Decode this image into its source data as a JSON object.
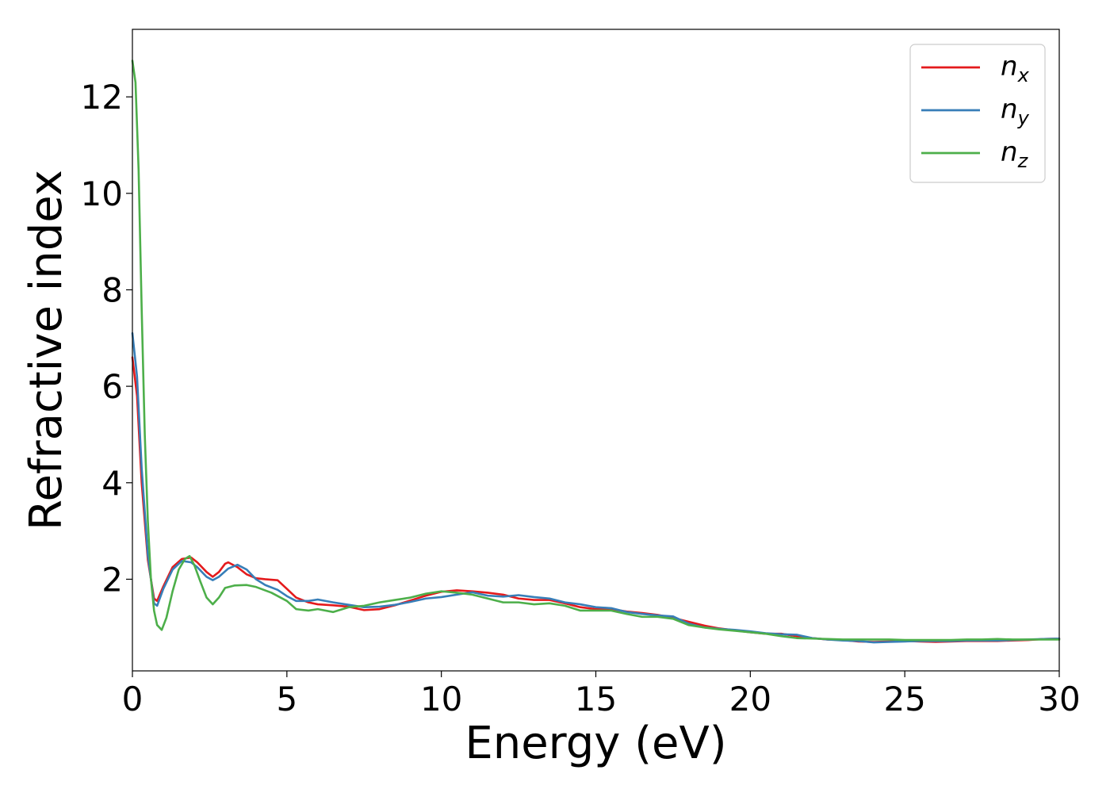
{
  "chart_data": {
    "type": "line",
    "xlabel": "Energy (eV)",
    "ylabel": "Refractive index",
    "xlim": [
      0,
      30
    ],
    "ylim": [
      0.1,
      13.4
    ],
    "xticks": [
      "0",
      "5",
      "10",
      "15",
      "20",
      "25",
      "30"
    ],
    "yticks": [
      "2",
      "4",
      "6",
      "8",
      "10",
      "12"
    ],
    "grid": false,
    "legend_position": "top-right",
    "series": [
      {
        "name": "n",
        "subscript": "x",
        "color": "#e41a1c",
        "points": [
          [
            0,
            6.6
          ],
          [
            0.15,
            5.8
          ],
          [
            0.3,
            4.0
          ],
          [
            0.5,
            2.4
          ],
          [
            0.7,
            1.6
          ],
          [
            0.8,
            1.55
          ],
          [
            1.0,
            1.85
          ],
          [
            1.3,
            2.25
          ],
          [
            1.6,
            2.42
          ],
          [
            1.9,
            2.45
          ],
          [
            2.1,
            2.35
          ],
          [
            2.4,
            2.15
          ],
          [
            2.6,
            2.05
          ],
          [
            2.8,
            2.15
          ],
          [
            3.0,
            2.32
          ],
          [
            3.1,
            2.35
          ],
          [
            3.4,
            2.25
          ],
          [
            3.7,
            2.1
          ],
          [
            4.0,
            2.02
          ],
          [
            4.3,
            2.0
          ],
          [
            4.7,
            1.98
          ],
          [
            5.0,
            1.8
          ],
          [
            5.3,
            1.62
          ],
          [
            5.7,
            1.52
          ],
          [
            6.0,
            1.48
          ],
          [
            6.5,
            1.46
          ],
          [
            7.0,
            1.43
          ],
          [
            7.5,
            1.36
          ],
          [
            8.0,
            1.38
          ],
          [
            8.5,
            1.46
          ],
          [
            9.0,
            1.56
          ],
          [
            9.5,
            1.66
          ],
          [
            10.0,
            1.74
          ],
          [
            10.5,
            1.77
          ],
          [
            11.0,
            1.75
          ],
          [
            11.5,
            1.72
          ],
          [
            12.0,
            1.68
          ],
          [
            12.5,
            1.6
          ],
          [
            13.0,
            1.57
          ],
          [
            13.5,
            1.57
          ],
          [
            14.0,
            1.5
          ],
          [
            14.5,
            1.42
          ],
          [
            15.0,
            1.38
          ],
          [
            15.5,
            1.38
          ],
          [
            16.0,
            1.33
          ],
          [
            16.5,
            1.3
          ],
          [
            17.0,
            1.26
          ],
          [
            17.5,
            1.2
          ],
          [
            18.0,
            1.12
          ],
          [
            18.5,
            1.04
          ],
          [
            19.0,
            0.98
          ],
          [
            19.5,
            0.94
          ],
          [
            20.0,
            0.9
          ],
          [
            20.5,
            0.87
          ],
          [
            21.0,
            0.87
          ],
          [
            21.5,
            0.82
          ],
          [
            22.0,
            0.78
          ],
          [
            22.5,
            0.75
          ],
          [
            23.0,
            0.74
          ],
          [
            23.5,
            0.71
          ],
          [
            24.0,
            0.7
          ],
          [
            24.5,
            0.71
          ],
          [
            25.0,
            0.72
          ],
          [
            25.5,
            0.71
          ],
          [
            26.0,
            0.7
          ],
          [
            26.5,
            0.71
          ],
          [
            27.0,
            0.72
          ],
          [
            27.5,
            0.72
          ],
          [
            28.0,
            0.72
          ],
          [
            28.5,
            0.73
          ],
          [
            29.0,
            0.74
          ],
          [
            29.5,
            0.76
          ],
          [
            30.0,
            0.77
          ]
        ]
      },
      {
        "name": "n",
        "subscript": "y",
        "color": "#377eb8",
        "points": [
          [
            0,
            7.1
          ],
          [
            0.15,
            6.2
          ],
          [
            0.3,
            4.3
          ],
          [
            0.5,
            2.5
          ],
          [
            0.7,
            1.5
          ],
          [
            0.8,
            1.45
          ],
          [
            1.0,
            1.8
          ],
          [
            1.3,
            2.2
          ],
          [
            1.6,
            2.38
          ],
          [
            1.9,
            2.35
          ],
          [
            2.1,
            2.25
          ],
          [
            2.4,
            2.05
          ],
          [
            2.6,
            1.98
          ],
          [
            2.8,
            2.05
          ],
          [
            3.1,
            2.22
          ],
          [
            3.4,
            2.3
          ],
          [
            3.7,
            2.2
          ],
          [
            4.0,
            2.0
          ],
          [
            4.3,
            1.88
          ],
          [
            4.7,
            1.78
          ],
          [
            5.0,
            1.65
          ],
          [
            5.3,
            1.55
          ],
          [
            5.7,
            1.55
          ],
          [
            6.0,
            1.58
          ],
          [
            6.5,
            1.52
          ],
          [
            7.0,
            1.47
          ],
          [
            7.5,
            1.42
          ],
          [
            8.0,
            1.43
          ],
          [
            8.5,
            1.47
          ],
          [
            9.0,
            1.53
          ],
          [
            9.5,
            1.6
          ],
          [
            10.0,
            1.63
          ],
          [
            10.5,
            1.68
          ],
          [
            11.0,
            1.73
          ],
          [
            11.5,
            1.66
          ],
          [
            12.0,
            1.64
          ],
          [
            12.5,
            1.67
          ],
          [
            13.0,
            1.63
          ],
          [
            13.5,
            1.6
          ],
          [
            14.0,
            1.52
          ],
          [
            14.5,
            1.48
          ],
          [
            15.0,
            1.42
          ],
          [
            15.5,
            1.4
          ],
          [
            16.0,
            1.32
          ],
          [
            16.5,
            1.28
          ],
          [
            17.0,
            1.25
          ],
          [
            17.5,
            1.23
          ],
          [
            18.0,
            1.08
          ],
          [
            18.5,
            1.0
          ],
          [
            19.0,
            0.97
          ],
          [
            19.5,
            0.95
          ],
          [
            20.0,
            0.92
          ],
          [
            20.5,
            0.88
          ],
          [
            21.0,
            0.86
          ],
          [
            21.5,
            0.85
          ],
          [
            22.0,
            0.78
          ],
          [
            22.5,
            0.75
          ],
          [
            23.0,
            0.73
          ],
          [
            23.5,
            0.72
          ],
          [
            24.0,
            0.69
          ],
          [
            24.5,
            0.7
          ],
          [
            25.0,
            0.71
          ],
          [
            25.5,
            0.72
          ],
          [
            26.0,
            0.72
          ],
          [
            26.5,
            0.72
          ],
          [
            27.0,
            0.73
          ],
          [
            27.5,
            0.73
          ],
          [
            28.0,
            0.73
          ],
          [
            28.5,
            0.74
          ],
          [
            29.0,
            0.75
          ],
          [
            29.5,
            0.76
          ],
          [
            30.0,
            0.77
          ]
        ]
      },
      {
        "name": "n",
        "subscript": "z",
        "color": "#4daf4a",
        "points": [
          [
            0,
            12.75
          ],
          [
            0.1,
            12.3
          ],
          [
            0.2,
            10.5
          ],
          [
            0.3,
            7.6
          ],
          [
            0.4,
            5.0
          ],
          [
            0.5,
            3.2
          ],
          [
            0.6,
            2.0
          ],
          [
            0.7,
            1.35
          ],
          [
            0.8,
            1.05
          ],
          [
            0.95,
            0.95
          ],
          [
            1.1,
            1.2
          ],
          [
            1.3,
            1.75
          ],
          [
            1.5,
            2.2
          ],
          [
            1.7,
            2.42
          ],
          [
            1.85,
            2.48
          ],
          [
            2.0,
            2.3
          ],
          [
            2.2,
            1.95
          ],
          [
            2.4,
            1.62
          ],
          [
            2.6,
            1.48
          ],
          [
            2.8,
            1.62
          ],
          [
            3.0,
            1.82
          ],
          [
            3.3,
            1.87
          ],
          [
            3.7,
            1.88
          ],
          [
            4.0,
            1.84
          ],
          [
            4.5,
            1.72
          ],
          [
            5.0,
            1.55
          ],
          [
            5.3,
            1.38
          ],
          [
            5.7,
            1.35
          ],
          [
            6.0,
            1.38
          ],
          [
            6.5,
            1.32
          ],
          [
            7.0,
            1.42
          ],
          [
            7.5,
            1.45
          ],
          [
            8.0,
            1.52
          ],
          [
            8.5,
            1.57
          ],
          [
            9.0,
            1.62
          ],
          [
            9.5,
            1.7
          ],
          [
            10.0,
            1.75
          ],
          [
            10.5,
            1.72
          ],
          [
            11.0,
            1.68
          ],
          [
            11.5,
            1.6
          ],
          [
            12.0,
            1.52
          ],
          [
            12.5,
            1.52
          ],
          [
            13.0,
            1.48
          ],
          [
            13.5,
            1.5
          ],
          [
            14.0,
            1.45
          ],
          [
            14.5,
            1.35
          ],
          [
            15.0,
            1.35
          ],
          [
            15.5,
            1.35
          ],
          [
            16.0,
            1.28
          ],
          [
            16.5,
            1.22
          ],
          [
            17.0,
            1.22
          ],
          [
            17.5,
            1.18
          ],
          [
            18.0,
            1.05
          ],
          [
            18.5,
            1.0
          ],
          [
            19.0,
            0.96
          ],
          [
            19.5,
            0.93
          ],
          [
            20.0,
            0.9
          ],
          [
            20.5,
            0.87
          ],
          [
            21.0,
            0.82
          ],
          [
            21.5,
            0.78
          ],
          [
            22.0,
            0.77
          ],
          [
            22.5,
            0.76
          ],
          [
            23.0,
            0.75
          ],
          [
            23.5,
            0.75
          ],
          [
            24.0,
            0.75
          ],
          [
            24.5,
            0.75
          ],
          [
            25.0,
            0.74
          ],
          [
            25.5,
            0.74
          ],
          [
            26.0,
            0.74
          ],
          [
            26.5,
            0.74
          ],
          [
            27.0,
            0.75
          ],
          [
            27.5,
            0.75
          ],
          [
            28.0,
            0.76
          ],
          [
            28.5,
            0.75
          ],
          [
            29.0,
            0.75
          ],
          [
            29.5,
            0.75
          ],
          [
            30.0,
            0.75
          ]
        ]
      }
    ]
  }
}
